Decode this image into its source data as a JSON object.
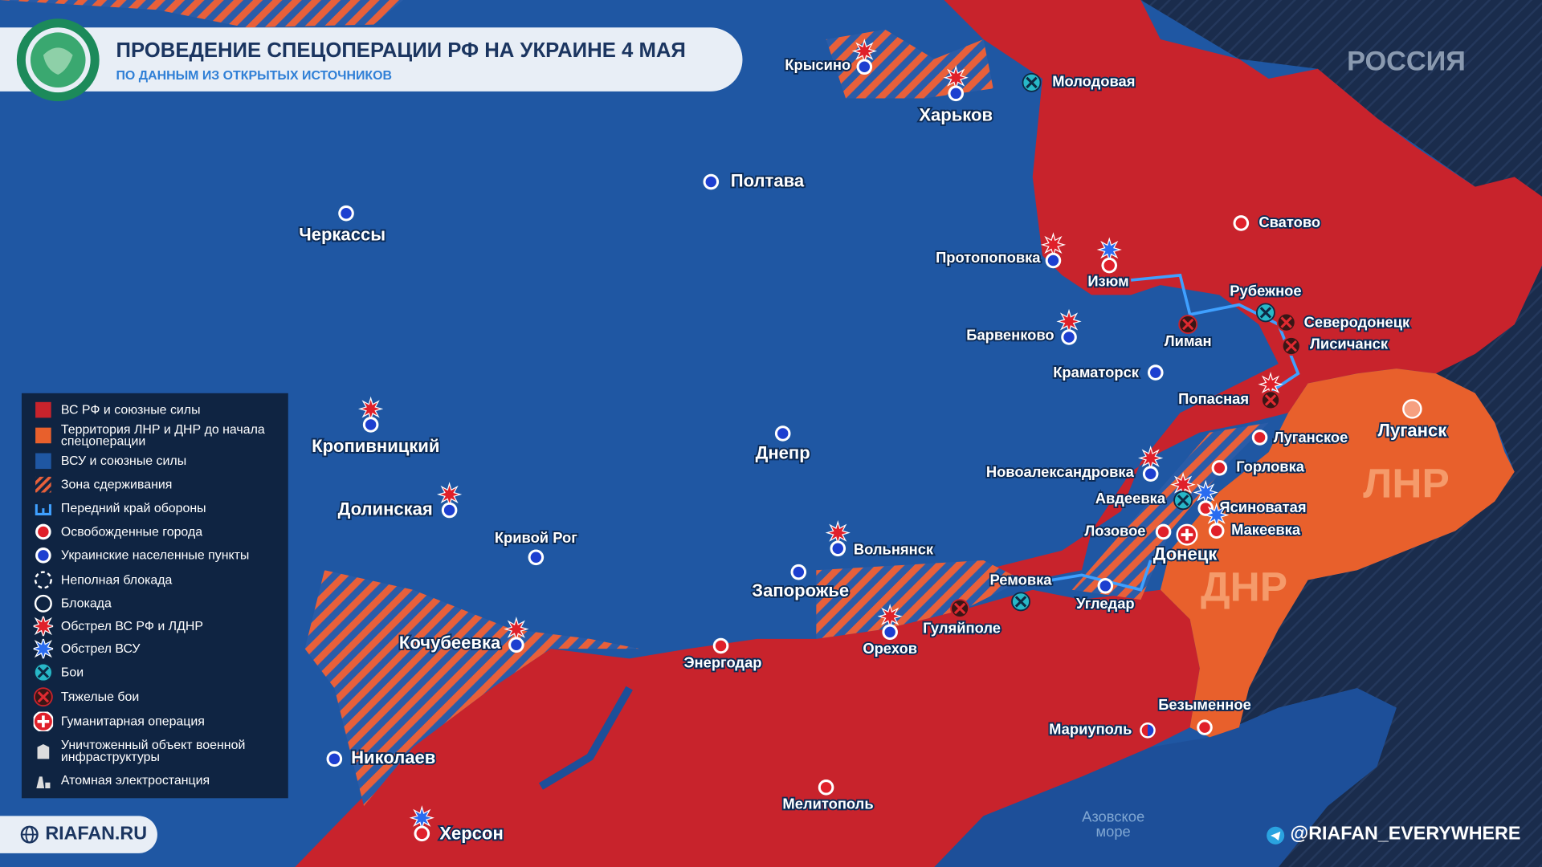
{
  "header": {
    "title": "ПРОВЕДЕНИЕ СПЕЦОПЕРАЦИИ РФ НА УКРАИНЕ 4 МАЯ",
    "subtitle": "ПО ДАННЫМ ИЗ ОТКРЫТЫХ ИСТОЧНИКОВ"
  },
  "regions": {
    "russia": "РОССИЯ",
    "lnr": "ЛНР",
    "dnr": "ДНР",
    "sea": "Азовское море"
  },
  "cities": [
    "Крысино",
    "Харьков",
    "Молодовая",
    "Полтава",
    "Черкассы",
    "Сватово",
    "Протопоповка",
    "Изюм",
    "Рубежное",
    "Северодонецк",
    "Лиман",
    "Лисичанск",
    "Барвенково",
    "Краматорск",
    "Попасная",
    "Луганск",
    "Луганское",
    "Кропивницкий",
    "Днепр",
    "Горловка",
    "Новоалександровка",
    "Авдеевка",
    "Ясиноватая",
    "Долинская",
    "Лозовое",
    "Макеевка",
    "Кривой Рог",
    "Вольнянск",
    "Донецк",
    "Запорожье",
    "Ремовка",
    "Угледар",
    "Гуляйполе",
    "Кочубеевка",
    "Орехов",
    "Энергодар",
    "Безыменное",
    "Мариуполь",
    "Николаев",
    "Мелитополь",
    "Херсон"
  ],
  "legend": [
    "ВС РФ и союзные силы",
    "Территория ЛНР и ДНР до начала спецоперации",
    "ВСУ и союзные силы",
    "Зона сдерживания",
    "Передний край обороны",
    "Освобожденные города",
    "Украинские населенные пункты",
    "Неполная блокада",
    "Блокада",
    "Обстрел ВС РФ и ЛДНР",
    "Обстрел ВСУ",
    "Бои",
    "Тяжелые бои",
    "Гуманитарная операция",
    "Уничтоженный объект военной инфраструктуры",
    "Атомная электростанция"
  ],
  "footer": {
    "site": "RIAFAN.RU",
    "telegram": "@RIAFAN_EVERYWHERE"
  }
}
